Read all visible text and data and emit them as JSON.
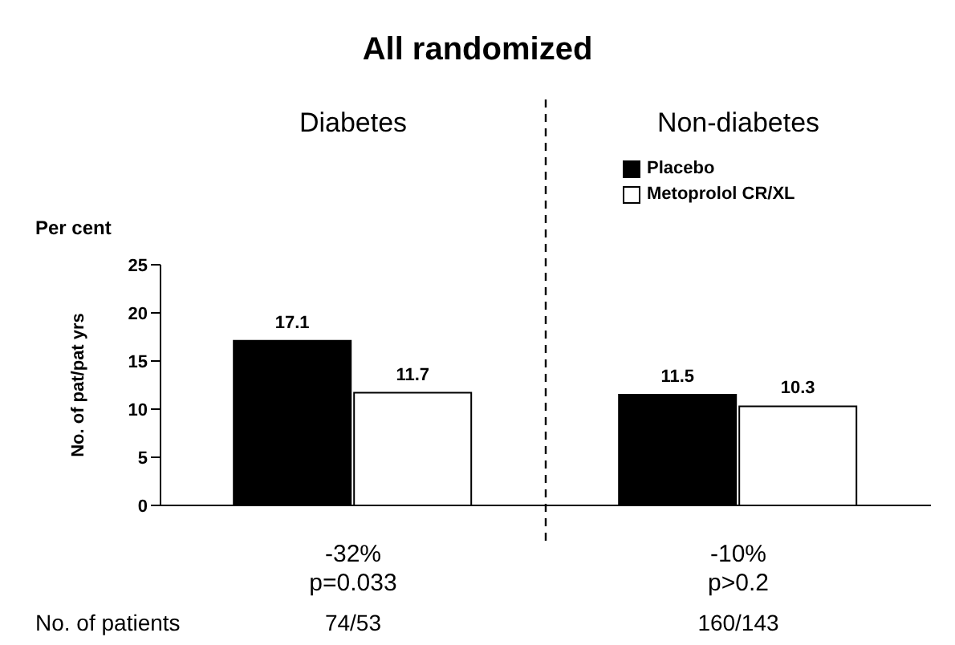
{
  "chart_data": {
    "type": "bar",
    "title": "All randomized",
    "ylabel": "No. of pat/pat yrs",
    "categories": [
      "Diabetes",
      "Non-diabetes"
    ],
    "series": [
      {
        "name": "Placebo",
        "color": "#000000",
        "values": [
          17.1,
          11.5
        ]
      },
      {
        "name": "Metoprolol CR/XL",
        "color": "#ffffff",
        "values": [
          11.7,
          10.3
        ]
      }
    ],
    "ylim": [
      0,
      25
    ],
    "yticks": [
      0,
      5,
      10,
      15,
      20,
      25
    ],
    "grid": false,
    "legend": "top right",
    "data_labels": true,
    "annotations": [
      "Per cent",
      "-32%",
      "p=0.033",
      "-10%",
      "p>0.2",
      "No. of patients",
      "74/53",
      "160/143"
    ]
  }
}
